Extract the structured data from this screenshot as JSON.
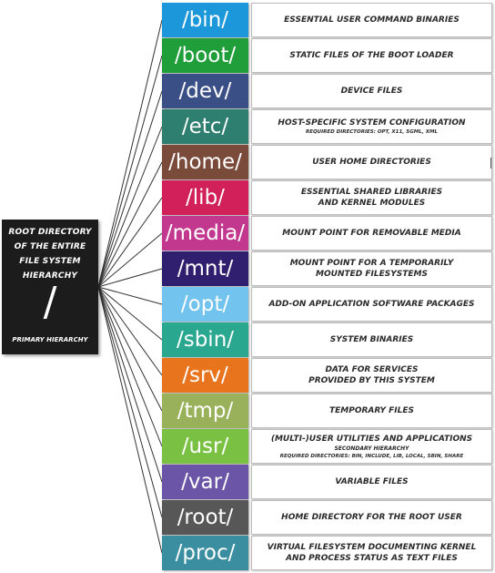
{
  "root": {
    "title_lines": [
      "ROOT DIRECTORY",
      "OF THE ENTIRE",
      "FILE SYSTEM",
      "HIERARCHY"
    ],
    "symbol": "/",
    "subtitle": "PRIMARY HIERARCHY",
    "color": "#1c1c1c"
  },
  "directories": [
    {
      "name": "/bin/",
      "color": "#1c97d9",
      "description": [
        "ESSENTIAL USER COMMAND BINARIES"
      ]
    },
    {
      "name": "/boot/",
      "color": "#1f9e3a",
      "description": [
        "STATIC FILES OF THE BOOT LOADER"
      ]
    },
    {
      "name": "/dev/",
      "color": "#3b4f87",
      "description": [
        "DEVICE FILES"
      ]
    },
    {
      "name": "/etc/",
      "color": "#2f7f71",
      "description": [
        "HOST-SPECIFIC SYSTEM CONFIGURATION"
      ],
      "note": "REQUIRED DIRECTORIES: OPT, X11, SGML, XML"
    },
    {
      "name": "/home/",
      "color": "#7a4a3a",
      "description": [
        "USER HOME DIRECTORIES"
      ]
    },
    {
      "name": "/lib/",
      "color": "#d2205a",
      "description": [
        "ESSENTIAL SHARED LIBRARIES",
        "AND KERNEL MODULES"
      ]
    },
    {
      "name": "/media/",
      "color": "#c2388f",
      "description": [
        "MOUNT POINT FOR REMOVABLE MEDIA"
      ]
    },
    {
      "name": "/mnt/",
      "color": "#2f1f6e",
      "description": [
        "MOUNT POINT FOR A TEMPORARILY",
        "MOUNTED FILESYSTEMS"
      ]
    },
    {
      "name": "/opt/",
      "color": "#72c3ee",
      "description": [
        "ADD-ON APPLICATION SOFTWARE PACKAGES"
      ]
    },
    {
      "name": "/sbin/",
      "color": "#2aa88f",
      "description": [
        "SYSTEM BINARIES"
      ]
    },
    {
      "name": "/srv/",
      "color": "#e9741e",
      "description": [
        "DATA FOR SERVICES",
        "PROVIDED BY THIS SYSTEM"
      ]
    },
    {
      "name": "/tmp/",
      "color": "#98b15a",
      "description": [
        "TEMPORARY FILES"
      ]
    },
    {
      "name": "/usr/",
      "color": "#7ac143",
      "description": [
        "(MULTI-)USER UTILITIES AND APPLICATIONS"
      ],
      "sub": "SECONDARY HIERARCHY",
      "note": "REQUIRED DIRECTORIES: BIN, INCLUDE, LIB, LOCAL, SBIN, SHARE"
    },
    {
      "name": "/var/",
      "color": "#6a55a6",
      "description": [
        "VARIABLE FILES"
      ]
    },
    {
      "name": "/root/",
      "color": "#575757",
      "description": [
        "HOME DIRECTORY FOR THE ROOT USER"
      ]
    },
    {
      "name": "/proc/",
      "color": "#3a8ea0",
      "description": [
        "VIRTUAL FILESYSTEM DOCUMENTING KERNEL",
        "AND PROCESS STATUS AS TEXT FILES"
      ]
    }
  ]
}
